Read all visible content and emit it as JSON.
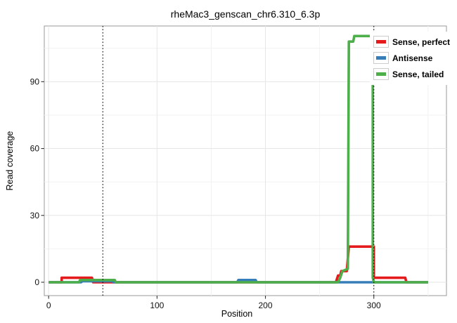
{
  "chart_data": {
    "type": "line",
    "title": "rheMac3_genscan_chr6.310_6.3p",
    "x_axis": {
      "label": "Position",
      "ticks": [
        0,
        100,
        200,
        300
      ],
      "minor_ticks": [
        50,
        150,
        250,
        350
      ],
      "range": [
        -4,
        367
      ]
    },
    "y_axis": {
      "label": "Read coverage",
      "ticks": [
        0,
        30,
        60,
        90
      ],
      "minor_ticks": [
        15,
        45,
        75,
        105
      ],
      "range": [
        -6,
        115
      ]
    },
    "grid": true,
    "vlines": {
      "positions": [
        50,
        300
      ],
      "style": "dotted",
      "color": "#000000"
    },
    "legend": {
      "position": "top-right-inside",
      "entries": [
        "Sense, perfect",
        "Antisense",
        "Sense, tailed"
      ]
    },
    "series": [
      {
        "name": "Sense, perfect",
        "color": "#E41A1C",
        "points": [
          [
            0,
            0
          ],
          [
            12,
            0
          ],
          [
            12,
            2
          ],
          [
            40,
            2
          ],
          [
            41,
            0
          ],
          [
            265,
            0
          ],
          [
            267,
            3
          ],
          [
            269,
            3
          ],
          [
            270,
            5
          ],
          [
            275,
            5
          ],
          [
            277,
            16
          ],
          [
            300,
            16
          ],
          [
            300,
            2
          ],
          [
            329,
            2
          ],
          [
            330,
            0
          ],
          [
            350,
            0
          ]
        ]
      },
      {
        "name": "Antisense",
        "color": "#377EB8",
        "points": [
          [
            0,
            0
          ],
          [
            30,
            0
          ],
          [
            31,
            0.5
          ],
          [
            59,
            0.5
          ],
          [
            60,
            0
          ],
          [
            174,
            0
          ],
          [
            175,
            1
          ],
          [
            191,
            1
          ],
          [
            192,
            0
          ],
          [
            350,
            0
          ]
        ]
      },
      {
        "name": "Sense, tailed",
        "color": "#4DAF4A",
        "points": [
          [
            0,
            0
          ],
          [
            28,
            0
          ],
          [
            29,
            1
          ],
          [
            61,
            1
          ],
          [
            62,
            0
          ],
          [
            267,
            0
          ],
          [
            269,
            2
          ],
          [
            271,
            5
          ],
          [
            276,
            6
          ],
          [
            277,
            108
          ],
          [
            281,
            108
          ],
          [
            282,
            110.5
          ],
          [
            299,
            110.5
          ],
          [
            299,
            2
          ],
          [
            300,
            0
          ],
          [
            350,
            0
          ]
        ]
      }
    ]
  }
}
